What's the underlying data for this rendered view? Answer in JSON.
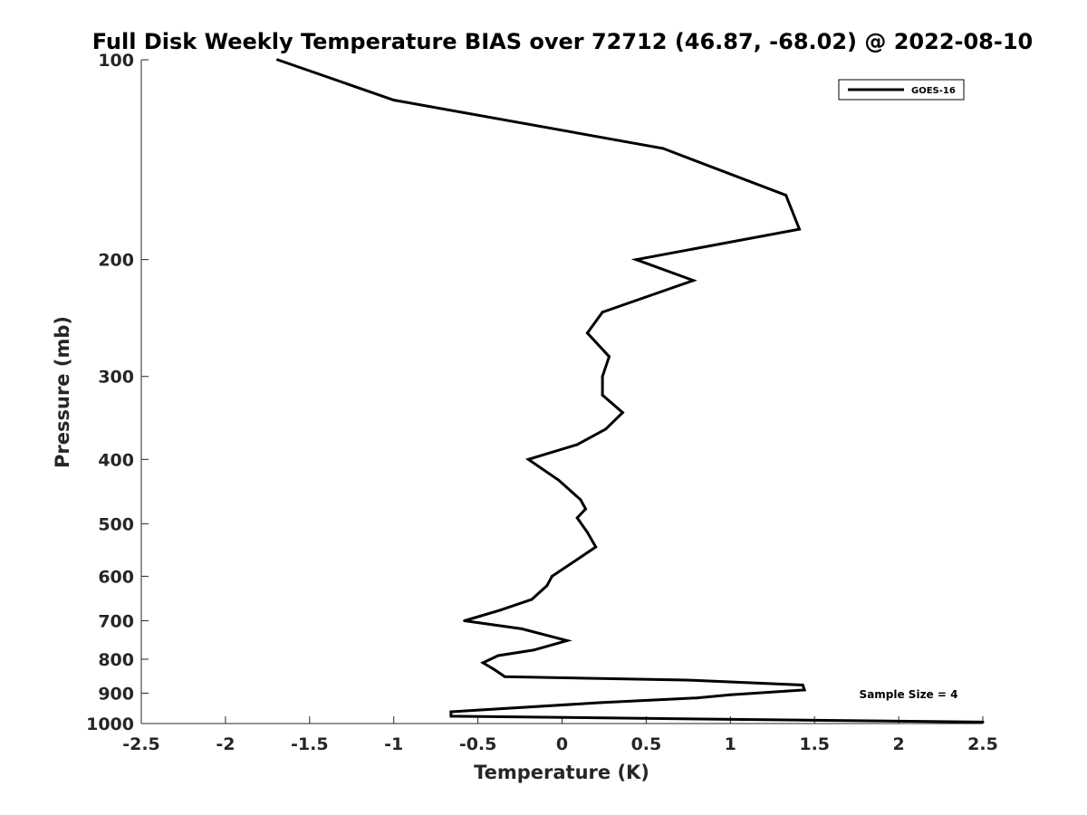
{
  "chart_data": {
    "type": "line",
    "title": "Full Disk Weekly Temperature BIAS over 72712 (46.87, -68.02) @ 2022-08-10",
    "xlabel": "Temperature (K)",
    "ylabel": "Pressure (mb)",
    "xlim": [
      -2.5,
      2.5
    ],
    "ylim": [
      100,
      1000
    ],
    "y_scale": "log",
    "y_reversed": true,
    "grid": false,
    "legend_position": "top-right",
    "x_ticks": [
      "-2.5",
      "-2",
      "-1.5",
      "-1",
      "-0.5",
      "0",
      "0.5",
      "1",
      "1.5",
      "2",
      "2.5"
    ],
    "y_ticks": [
      "100",
      "200",
      "300",
      "400",
      "500",
      "600",
      "700",
      "800",
      "900",
      "1000"
    ],
    "series": [
      {
        "name": "GOES-16",
        "color": "#000000",
        "points": [
          [
            -1.69,
            100
          ],
          [
            -1.0,
            115
          ],
          [
            0.6,
            136
          ],
          [
            1.33,
            160
          ],
          [
            1.41,
            180
          ],
          [
            0.44,
            200
          ],
          [
            0.78,
            215
          ],
          [
            0.24,
            240
          ],
          [
            0.15,
            258
          ],
          [
            0.28,
            280
          ],
          [
            0.24,
            300
          ],
          [
            0.24,
            320
          ],
          [
            0.36,
            340
          ],
          [
            0.26,
            360
          ],
          [
            0.09,
            380
          ],
          [
            -0.2,
            400
          ],
          [
            -0.02,
            430
          ],
          [
            0.11,
            460
          ],
          [
            0.14,
            475
          ],
          [
            0.09,
            490
          ],
          [
            0.15,
            515
          ],
          [
            0.2,
            542
          ],
          [
            0.05,
            575
          ],
          [
            -0.06,
            600
          ],
          [
            -0.09,
            620
          ],
          [
            -0.18,
            650
          ],
          [
            -0.37,
            675
          ],
          [
            -0.58,
            700
          ],
          [
            -0.24,
            720
          ],
          [
            0.03,
            750
          ],
          [
            -0.17,
            775
          ],
          [
            -0.38,
            790
          ],
          [
            -0.47,
            810
          ],
          [
            -0.4,
            830
          ],
          [
            -0.34,
            850
          ],
          [
            0.74,
            860
          ],
          [
            1.43,
            875
          ],
          [
            1.44,
            890
          ],
          [
            1.0,
            905
          ],
          [
            0.8,
            915
          ],
          [
            0.23,
            930
          ],
          [
            -0.66,
            960
          ],
          [
            -0.66,
            975
          ],
          [
            2.5,
            995
          ]
        ]
      }
    ],
    "annotations": [
      {
        "text": "Sample Size = 4"
      }
    ]
  }
}
